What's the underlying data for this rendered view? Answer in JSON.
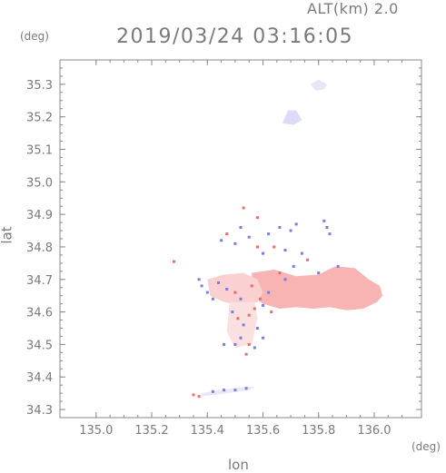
{
  "header": {
    "altitude": "ALT(km) 2.0",
    "timestamp": "2019/03/24 03:16:05"
  },
  "chart_data": {
    "type": "heatmap",
    "xlabel": "lon",
    "ylabel": "lat",
    "x_unit": "(deg)",
    "y_unit": "(deg)",
    "xlim": [
      134.87,
      136.17
    ],
    "ylim": [
      34.275,
      35.375
    ],
    "x_ticks": [
      "135.0",
      "135.2",
      "135.4",
      "135.6",
      "135.8",
      "136.0"
    ],
    "y_ticks": [
      "34.3",
      "34.4",
      "34.5",
      "34.6",
      "34.7",
      "34.8",
      "34.9",
      "35.0",
      "35.1",
      "35.2",
      "35.3"
    ],
    "colors": {
      "frame": "#8a8a8a",
      "positive_strong": "#ee6b6b",
      "positive_light": "#f8bcbc",
      "negative": "#7b7be6",
      "negative_light": "#d4d4f6"
    },
    "regions": [
      {
        "name": "main-east",
        "color": "#f8b3b3",
        "points": [
          [
            135.56,
            34.72
          ],
          [
            135.64,
            34.73
          ],
          [
            135.72,
            34.71
          ],
          [
            135.8,
            34.715
          ],
          [
            135.86,
            34.74
          ],
          [
            135.93,
            34.735
          ],
          [
            135.98,
            34.7
          ],
          [
            136.02,
            34.68
          ],
          [
            136.03,
            34.65
          ],
          [
            136.01,
            34.63
          ],
          [
            135.96,
            34.61
          ],
          [
            135.9,
            34.605
          ],
          [
            135.84,
            34.615
          ],
          [
            135.78,
            34.61
          ],
          [
            135.72,
            34.615
          ],
          [
            135.66,
            34.61
          ],
          [
            135.6,
            34.625
          ],
          [
            135.56,
            34.65
          ]
        ]
      },
      {
        "name": "main-west",
        "color": "#fad0d0",
        "points": [
          [
            135.4,
            34.7
          ],
          [
            135.46,
            34.715
          ],
          [
            135.53,
            34.72
          ],
          [
            135.58,
            34.7
          ],
          [
            135.6,
            34.66
          ],
          [
            135.58,
            34.63
          ],
          [
            135.52,
            34.62
          ],
          [
            135.46,
            34.63
          ],
          [
            135.41,
            34.65
          ]
        ]
      },
      {
        "name": "south-plume",
        "color": "#fbe0e0",
        "points": [
          [
            135.48,
            34.63
          ],
          [
            135.57,
            34.63
          ],
          [
            135.58,
            34.58
          ],
          [
            135.56,
            34.5
          ],
          [
            135.5,
            34.49
          ],
          [
            135.47,
            34.54
          ]
        ]
      },
      {
        "name": "ne-cloud-1",
        "color": "#e6e6fb",
        "points": [
          [
            135.77,
            35.3
          ],
          [
            135.8,
            35.315
          ],
          [
            135.83,
            35.3
          ],
          [
            135.82,
            35.285
          ],
          [
            135.79,
            35.28
          ]
        ]
      },
      {
        "name": "ne-cloud-2",
        "color": "#dcdcf8",
        "points": [
          [
            135.67,
            35.18
          ],
          [
            135.69,
            35.22
          ],
          [
            135.72,
            35.22
          ],
          [
            135.74,
            35.19
          ],
          [
            135.71,
            35.175
          ]
        ]
      },
      {
        "name": "south-strip",
        "color": "#e8e8fb",
        "points": [
          [
            135.38,
            34.34
          ],
          [
            135.47,
            34.35
          ],
          [
            135.55,
            34.36
          ],
          [
            135.57,
            34.37
          ],
          [
            135.54,
            34.37
          ],
          [
            135.44,
            34.36
          ],
          [
            135.38,
            34.35
          ]
        ]
      }
    ],
    "echoes": [
      [
        135.28,
        34.755,
        "p"
      ],
      [
        135.37,
        34.7,
        "n"
      ],
      [
        135.38,
        34.68,
        "n"
      ],
      [
        135.4,
        34.66,
        "n"
      ],
      [
        135.42,
        34.64,
        "n"
      ],
      [
        135.44,
        34.69,
        "n"
      ],
      [
        135.47,
        34.67,
        "n"
      ],
      [
        135.5,
        34.66,
        "p"
      ],
      [
        135.52,
        34.64,
        "n"
      ],
      [
        135.49,
        34.6,
        "n"
      ],
      [
        135.51,
        34.58,
        "p"
      ],
      [
        135.53,
        34.56,
        "n"
      ],
      [
        135.55,
        34.59,
        "p"
      ],
      [
        135.57,
        34.61,
        "p"
      ],
      [
        135.6,
        34.62,
        "n"
      ],
      [
        135.58,
        34.55,
        "n"
      ],
      [
        135.52,
        34.52,
        "n"
      ],
      [
        135.55,
        34.5,
        "p"
      ],
      [
        135.57,
        34.49,
        "n"
      ],
      [
        135.6,
        34.52,
        "n"
      ],
      [
        135.5,
        34.5,
        "n"
      ],
      [
        135.54,
        34.47,
        "p"
      ],
      [
        135.46,
        34.5,
        "n"
      ],
      [
        135.62,
        34.66,
        "n"
      ],
      [
        135.45,
        34.82,
        "n"
      ],
      [
        135.47,
        34.84,
        "p"
      ],
      [
        135.5,
        34.81,
        "n"
      ],
      [
        135.52,
        34.86,
        "n"
      ],
      [
        135.55,
        34.83,
        "n"
      ],
      [
        135.58,
        34.8,
        "p"
      ],
      [
        135.6,
        34.78,
        "n"
      ],
      [
        135.62,
        34.84,
        "n"
      ],
      [
        135.64,
        34.8,
        "p"
      ],
      [
        135.66,
        34.86,
        "n"
      ],
      [
        135.68,
        34.79,
        "n"
      ],
      [
        135.7,
        34.85,
        "n"
      ],
      [
        135.72,
        34.87,
        "n"
      ],
      [
        135.74,
        34.78,
        "n"
      ],
      [
        135.76,
        34.76,
        "p"
      ],
      [
        135.71,
        34.74,
        "n"
      ],
      [
        135.53,
        34.92,
        "p"
      ],
      [
        135.58,
        34.89,
        "p"
      ],
      [
        135.83,
        34.86,
        "n"
      ],
      [
        135.84,
        34.84,
        "n"
      ],
      [
        135.82,
        34.88,
        "n"
      ],
      [
        135.8,
        34.72,
        "n"
      ],
      [
        135.68,
        34.7,
        "n"
      ],
      [
        135.35,
        34.345,
        "p"
      ],
      [
        135.37,
        34.34,
        "p"
      ],
      [
        135.42,
        34.355,
        "n"
      ],
      [
        135.46,
        34.36,
        "n"
      ],
      [
        135.5,
        34.36,
        "n"
      ],
      [
        135.54,
        34.365,
        "n"
      ],
      [
        135.87,
        34.74,
        "n"
      ],
      [
        135.66,
        34.72,
        "p"
      ],
      [
        135.63,
        34.6,
        "p"
      ],
      [
        135.59,
        34.64,
        "p"
      ],
      [
        135.56,
        34.68,
        "p"
      ]
    ]
  }
}
